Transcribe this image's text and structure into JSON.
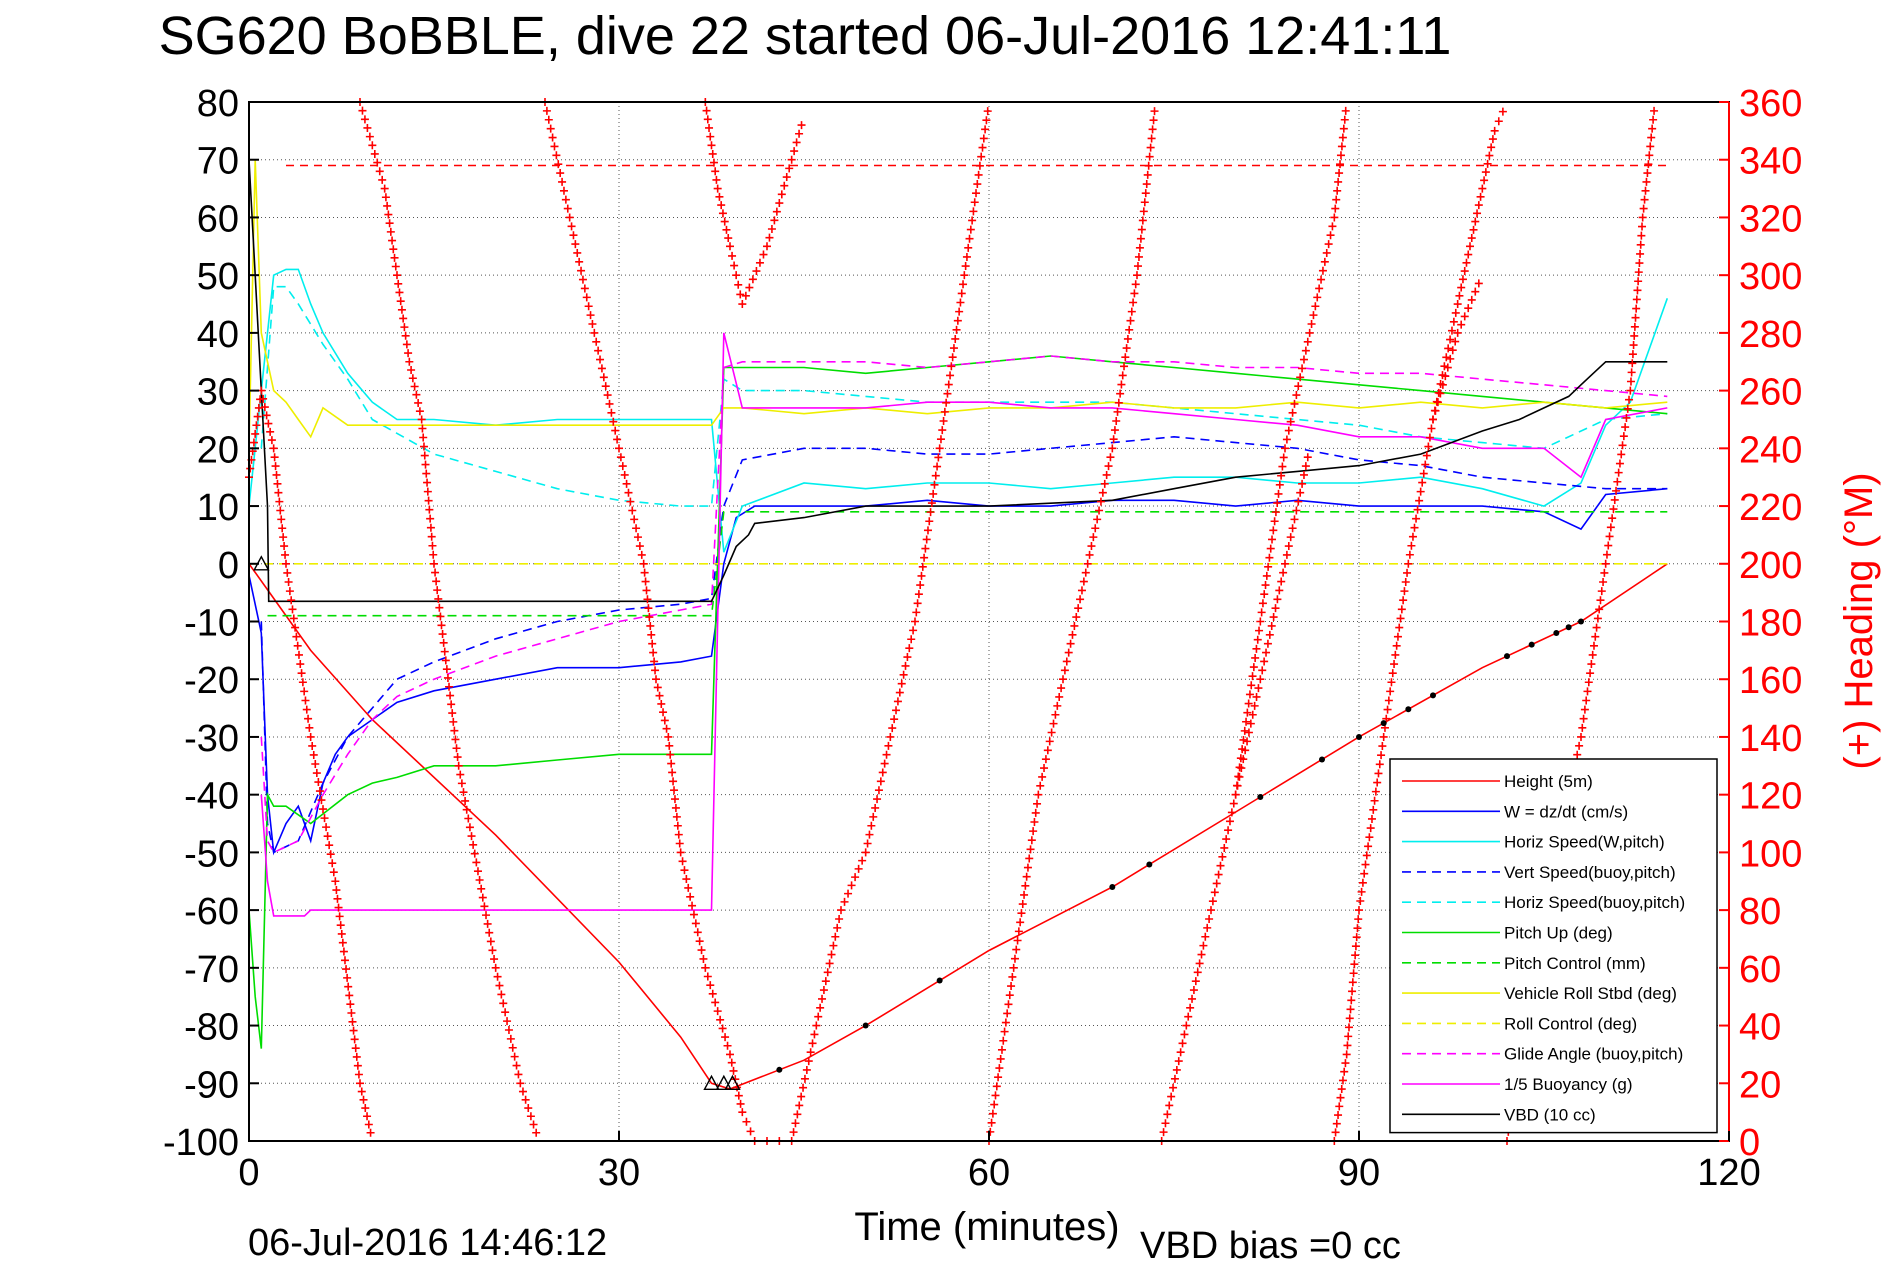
{
  "chart_data": {
    "type": "line",
    "title": "SG620 BoBBLE, dive 22 started 06-Jul-2016 12:41:11",
    "xlabel": "Time (minutes)",
    "ylabel_right": "(+) Heading (°M)",
    "footer_left": "06-Jul-2016 14:46:12",
    "footer_right": "VBD bias =0 cc",
    "xlim": [
      0,
      120
    ],
    "ylim": [
      -100,
      80
    ],
    "y2lim": [
      0,
      360
    ],
    "xticks": [
      0,
      30,
      60,
      90,
      120
    ],
    "yticks": [
      80,
      70,
      60,
      50,
      40,
      30,
      20,
      10,
      0,
      -10,
      -20,
      -30,
      -40,
      -50,
      -60,
      -70,
      -80,
      -90,
      -100
    ],
    "y2ticks": [
      360,
      340,
      320,
      300,
      280,
      260,
      240,
      220,
      200,
      180,
      160,
      140,
      120,
      100,
      80,
      60,
      40,
      20,
      0
    ],
    "grid": true,
    "legend_position": "bottom-right",
    "colors": {
      "axis_right": "#ff0000"
    },
    "series": [
      {
        "name": "Height (5m)",
        "color": "#ff0000",
        "dash": "solid",
        "x": [
          0,
          2,
          5,
          10,
          20,
          30,
          35,
          37.5,
          39,
          45,
          50,
          60,
          70,
          80,
          90,
          100,
          108,
          115
        ],
        "y": [
          0,
          -6,
          -15,
          -27,
          -47,
          -69,
          -82,
          -90,
          -91,
          -86,
          -80,
          -67,
          -56,
          -43,
          -30,
          -18,
          -10,
          0
        ]
      },
      {
        "name": "W = dz/dt (cm/s)",
        "color": "#0000ff",
        "dash": "solid",
        "x": [
          0,
          1,
          1.5,
          2,
          3,
          4,
          5,
          6,
          7,
          8,
          10,
          12,
          15,
          20,
          25,
          30,
          35,
          37.5,
          38.5,
          39.5,
          41,
          45,
          50,
          55,
          60,
          65,
          70,
          75,
          80,
          85,
          90,
          95,
          100,
          105,
          108,
          110,
          115
        ],
        "y": [
          -2,
          -12,
          -40,
          -50,
          -45,
          -42,
          -48,
          -38,
          -33,
          -30,
          -27,
          -24,
          -22,
          -20,
          -18,
          -18,
          -17,
          -16,
          0,
          8,
          10,
          10,
          10,
          11,
          10,
          10,
          11,
          11,
          10,
          11,
          10,
          10,
          10,
          9,
          6,
          12,
          13
        ]
      },
      {
        "name": "Horiz Speed(W,pitch)",
        "color": "#00eeee",
        "dash": "solid",
        "x": [
          0,
          1,
          2,
          3,
          4,
          5,
          6,
          8,
          10,
          12,
          15,
          20,
          25,
          30,
          35,
          37.5,
          38.5,
          40,
          45,
          50,
          55,
          60,
          65,
          70,
          75,
          80,
          85,
          90,
          95,
          100,
          105,
          108,
          110,
          112,
          115
        ],
        "y": [
          10,
          30,
          50,
          51,
          51,
          45,
          40,
          33,
          28,
          25,
          25,
          24,
          25,
          25,
          25,
          25,
          2,
          10,
          14,
          13,
          14,
          14,
          13,
          14,
          15,
          15,
          14,
          14,
          15,
          13,
          10,
          14,
          24,
          28,
          46
        ]
      },
      {
        "name": "Vert Speed(buoy,pitch)",
        "color": "#0000ff",
        "dash": "dash",
        "x": [
          1,
          1.5,
          2,
          4,
          6,
          8,
          10,
          12,
          15,
          20,
          25,
          30,
          35,
          37.5,
          38.5,
          40,
          45,
          50,
          55,
          60,
          65,
          70,
          75,
          80,
          85,
          90,
          95,
          100,
          105,
          110,
          115
        ],
        "y": [
          -10,
          -45,
          -50,
          -48,
          -38,
          -30,
          -25,
          -20,
          -17,
          -13,
          -10,
          -8,
          -7,
          -6,
          10,
          18,
          20,
          20,
          19,
          19,
          20,
          21,
          22,
          21,
          20,
          18,
          17,
          15,
          14,
          13,
          13
        ]
      },
      {
        "name": "Horiz Speed(buoy,pitch)",
        "color": "#00eeee",
        "dash": "dash",
        "x": [
          1,
          2,
          3,
          4,
          6,
          8,
          10,
          15,
          20,
          25,
          30,
          35,
          37.5,
          38.5,
          40,
          45,
          50,
          55,
          60,
          65,
          70,
          75,
          80,
          85,
          90,
          95,
          100,
          105,
          110,
          115
        ],
        "y": [
          20,
          48,
          48,
          45,
          38,
          32,
          25,
          19,
          16,
          13,
          11,
          10,
          10,
          32,
          30,
          30,
          29,
          28,
          28,
          28,
          28,
          27,
          26,
          25,
          24,
          22,
          21,
          20,
          25,
          26
        ]
      },
      {
        "name": "Pitch Up (deg)",
        "color": "#00dd00",
        "dash": "solid",
        "x": [
          0,
          0.5,
          1,
          1.5,
          2,
          3,
          5,
          8,
          10,
          12,
          15,
          20,
          25,
          30,
          35,
          37.5,
          38.5,
          40,
          45,
          50,
          55,
          60,
          65,
          70,
          75,
          80,
          85,
          90,
          95,
          100,
          105,
          110,
          115
        ],
        "y": [
          -60,
          -75,
          -84,
          -40,
          -42,
          -42,
          -45,
          -40,
          -38,
          -37,
          -35,
          -35,
          -34,
          -33,
          -33,
          -33,
          34,
          34,
          34,
          33,
          34,
          35,
          36,
          35,
          34,
          33,
          32,
          31,
          30,
          29,
          28,
          27,
          26
        ]
      },
      {
        "name": "Pitch Control (mm)",
        "color": "#00dd00",
        "dash": "dash",
        "x": [
          1.5,
          37.5,
          38.5,
          115
        ],
        "y": [
          -9,
          -9,
          9,
          9
        ]
      },
      {
        "name": "Vehicle Roll Stbd (deg)",
        "color": "#eeee00",
        "dash": "solid",
        "x": [
          0,
          0.5,
          1,
          2,
          3,
          4,
          5,
          6,
          8,
          10,
          15,
          20,
          25,
          30,
          35,
          37.5,
          38.5,
          40,
          45,
          50,
          55,
          60,
          65,
          70,
          75,
          80,
          85,
          90,
          95,
          100,
          105,
          110,
          115
        ],
        "y": [
          20,
          70,
          40,
          30,
          28,
          25,
          22,
          27,
          24,
          24,
          24,
          24,
          24,
          24,
          24,
          24,
          27,
          27,
          26,
          27,
          26,
          27,
          27,
          28,
          27,
          27,
          28,
          27,
          28,
          27,
          28,
          27,
          28
        ]
      },
      {
        "name": "Roll Control (deg)",
        "color": "#eeee00",
        "dash": "dash",
        "x": [
          0,
          115
        ],
        "y": [
          0,
          0
        ]
      },
      {
        "name": "Glide Angle (buoy,pitch)",
        "color": "#ff00ff",
        "dash": "dash",
        "x": [
          1,
          1.5,
          2,
          4,
          6,
          8,
          10,
          12,
          15,
          20,
          25,
          30,
          35,
          37.5,
          38.5,
          40,
          45,
          50,
          55,
          60,
          65,
          70,
          75,
          80,
          85,
          90,
          95,
          100,
          105,
          110,
          115
        ],
        "y": [
          -30,
          -48,
          -50,
          -48,
          -40,
          -33,
          -27,
          -23,
          -20,
          -16,
          -13,
          -10,
          -8,
          -7,
          34,
          35,
          35,
          35,
          34,
          35,
          36,
          35,
          35,
          34,
          34,
          33,
          33,
          32,
          31,
          30,
          29
        ]
      },
      {
        "name": "1/5 Buoyancy (g)",
        "color": "#ff00ff",
        "dash": "solid",
        "x": [
          1,
          1.5,
          2,
          4.5,
          5,
          37.5,
          38.5,
          40,
          45,
          50,
          55,
          60,
          65,
          70,
          75,
          80,
          85,
          90,
          95,
          100,
          105,
          108,
          110,
          115
        ],
        "y": [
          -40,
          -55,
          -61,
          -61,
          -60,
          -60,
          40,
          27,
          27,
          27,
          28,
          28,
          27,
          27,
          26,
          25,
          24,
          22,
          22,
          20,
          20,
          15,
          25,
          27
        ]
      },
      {
        "name": "VBD (10 cc)",
        "color": "#000000",
        "dash": "solid",
        "x": [
          0,
          0.5,
          1,
          1.5,
          1.6,
          37.5,
          38.5,
          39.5,
          40.5,
          41,
          45,
          50,
          60,
          70,
          75,
          80,
          85,
          90,
          95,
          100,
          103,
          105,
          107,
          108,
          109,
          110,
          115
        ],
        "y": [
          70,
          50,
          30,
          10,
          -6.5,
          -6.5,
          -2,
          3,
          5,
          7,
          8,
          10,
          10,
          11,
          13,
          15,
          16,
          17,
          19,
          23,
          25,
          27,
          29,
          31,
          33,
          35,
          35
        ]
      },
      {
        "name": "Heading",
        "color": "#ff0000",
        "dash": "plus",
        "axis": "right",
        "segments": [
          {
            "x": [
              0,
              1,
              2,
              3,
              5,
              7,
              9,
              10
            ],
            "y": [
              230,
              260,
              240,
              200,
              140,
              90,
              20,
              0
            ]
          },
          {
            "x": [
              9,
              10,
              11,
              12,
              13,
              14,
              15,
              17,
              20,
              22,
              23.5
            ],
            "y": [
              360,
              345,
              330,
              300,
              270,
              250,
              200,
              130,
              60,
              20,
              0
            ]
          },
          {
            "x": [
              24,
              26,
              28,
              30,
              32,
              33,
              34,
              35
            ],
            "y": [
              360,
              320,
              280,
              240,
              200,
              160,
              140,
              100
            ]
          },
          {
            "x": [
              35,
              37,
              39,
              40,
              41,
              42,
              43,
              44
            ],
            "y": [
              100,
              60,
              30,
              10,
              0,
              0,
              0,
              0
            ]
          },
          {
            "x": [
              37,
              38,
              39,
              39.5,
              40,
              42,
              44,
              45
            ],
            "y": [
              360,
              330,
              310,
              300,
              290,
              310,
              340,
              355
            ]
          },
          {
            "x": [
              44,
              46,
              48,
              50,
              52,
              54,
              56,
              58,
              60
            ],
            "y": [
              0,
              40,
              80,
              100,
              140,
              180,
              240,
              300,
              360
            ]
          },
          {
            "x": [
              60,
              62,
              64,
              66,
              68,
              70,
              72,
              73.5
            ],
            "y": [
              0,
              60,
              120,
              160,
              200,
              240,
              300,
              360
            ]
          },
          {
            "x": [
              74,
              76,
              78,
              80,
              82,
              84,
              86
            ],
            "y": [
              0,
              40,
              80,
              120,
              160,
              200,
              240
            ]
          },
          {
            "x": [
              80,
              82,
              84,
              86,
              88,
              89
            ],
            "y": [
              120,
              180,
              240,
              280,
              320,
              360
            ]
          },
          {
            "x": [
              88,
              89,
              90,
              92,
              94,
              96,
              98,
              100
            ],
            "y": [
              0,
              30,
              80,
              140,
              200,
              250,
              280,
              300
            ]
          },
          {
            "x": [
              96,
              98,
              99,
              100,
              101,
              102
            ],
            "y": [
              250,
              290,
              310,
              330,
              350,
              360
            ]
          },
          {
            "x": [
              102,
              104,
              106,
              108,
              110,
              112,
              113,
              114
            ],
            "y": [
              0,
              60,
              100,
              140,
              200,
              260,
              320,
              360
            ]
          }
        ]
      }
    ]
  }
}
